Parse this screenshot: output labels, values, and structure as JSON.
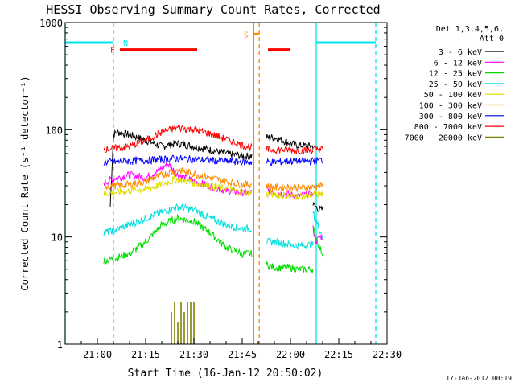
{
  "chart_data": {
    "type": "line",
    "title": "HESSI Observing Summary Count Rates, Corrected",
    "xlabel": "Start Time (16-Jan-12 20:50:02)",
    "ylabel": "Corrected Count Rate (s⁻¹ detector⁻¹)",
    "y_scale": "log",
    "ylim": [
      1,
      1000
    ],
    "xlim_minutes": [
      0,
      100
    ],
    "x_ticks": [
      {
        "minute": 10,
        "label": "21:00"
      },
      {
        "minute": 25,
        "label": "21:15"
      },
      {
        "minute": 40,
        "label": "21:30"
      },
      {
        "minute": 55,
        "label": "21:45"
      },
      {
        "minute": 70,
        "label": "22:00"
      },
      {
        "minute": 85,
        "label": "22:15"
      },
      {
        "minute": 100,
        "label": "22:30"
      }
    ],
    "y_ticks": [
      {
        "value": 1,
        "label": "1"
      },
      {
        "value": 10,
        "label": "10"
      },
      {
        "value": 100,
        "label": "100"
      },
      {
        "value": 1000,
        "label": "1000"
      }
    ],
    "legend_header": [
      "Det 1,3,4,5,6,",
      "Att 0"
    ],
    "legend_placement": "right",
    "series": [
      {
        "name": "3 - 6 keV",
        "color": "#000000",
        "segments": [
          {
            "x": [
              14,
              15,
              16,
              20,
              25,
              30,
              35,
              40,
              45,
              50,
              55,
              58
            ],
            "y": [
              19,
              90,
              95,
              90,
              80,
              70,
              75,
              70,
              65,
              60,
              57,
              57
            ]
          },
          {
            "x": [
              62.5,
              65,
              70,
              72,
              77
            ],
            "y": [
              85,
              85,
              75,
              72,
              70
            ]
          },
          {
            "x": [
              77,
              78,
              79,
              80
            ],
            "y": [
              20,
              19,
              18,
              18
            ]
          }
        ]
      },
      {
        "name": "6 - 12 keV",
        "color": "#ff00ff",
        "segments": [
          {
            "x": [
              12,
              15,
              20,
              25,
              28,
              32,
              35,
              40,
              45,
              50,
              55,
              58
            ],
            "y": [
              32,
              35,
              38,
              36,
              40,
              48,
              38,
              33,
              30,
              27,
              26,
              26
            ]
          },
          {
            "x": [
              62.5,
              65,
              70,
              72,
              77
            ],
            "y": [
              28,
              26,
              25,
              24,
              25
            ]
          },
          {
            "x": [
              77,
              78,
              79,
              80
            ],
            "y": [
              12,
              9,
              10,
              10
            ]
          }
        ]
      },
      {
        "name": "12 - 25 keV",
        "color": "#00dd00",
        "segments": [
          {
            "x": [
              12,
              15,
              20,
              25,
              30,
              35,
              40,
              45,
              50,
              55,
              58
            ],
            "y": [
              6,
              6.3,
              7,
              9,
              13,
              15,
              14,
              11,
              8,
              7,
              7
            ]
          },
          {
            "x": [
              62.5,
              65,
              70,
              72,
              77
            ],
            "y": [
              5.5,
              5.2,
              5.2,
              5,
              5
            ]
          },
          {
            "x": [
              77,
              78,
              79,
              80
            ],
            "y": [
              12,
              10,
              8,
              7
            ]
          }
        ]
      },
      {
        "name": "25 - 50 keV",
        "color": "#00dddd",
        "segments": [
          {
            "x": [
              12,
              15,
              20,
              25,
              30,
              35,
              40,
              45,
              50,
              55,
              58
            ],
            "y": [
              11,
              11.5,
              13,
              15,
              17,
              19,
              18,
              15,
              13,
              12,
              12
            ]
          },
          {
            "x": [
              62.5,
              65,
              70,
              72,
              77
            ],
            "y": [
              9,
              9,
              8.5,
              8.3,
              8.5
            ]
          },
          {
            "x": [
              77,
              78,
              79,
              80
            ],
            "y": [
              17,
              14,
              12,
              10
            ]
          }
        ]
      },
      {
        "name": "50 - 100 keV",
        "color": "#dddd00",
        "segments": [
          {
            "x": [
              12,
              15,
              20,
              25,
              30,
              35,
              40,
              45,
              50,
              55,
              58
            ],
            "y": [
              25,
              26,
              27,
              28,
              31,
              35,
              32,
              30,
              28,
              26,
              26
            ]
          },
          {
            "x": [
              62.5,
              65,
              70,
              72,
              77
            ],
            "y": [
              25,
              25,
              24,
              24,
              24
            ]
          },
          {
            "x": [
              77,
              78,
              79,
              80
            ],
            "y": [
              25,
              25,
              25,
              25
            ]
          }
        ]
      },
      {
        "name": "100 - 300 keV",
        "color": "#ff8800",
        "segments": [
          {
            "x": [
              12,
              15,
              20,
              25,
              30,
              35,
              40,
              45,
              50,
              55,
              58
            ],
            "y": [
              30,
              30,
              31,
              33,
              38,
              42,
              39,
              36,
              33,
              31,
              31
            ]
          },
          {
            "x": [
              62.5,
              65,
              70,
              72,
              77
            ],
            "y": [
              30,
              29,
              29,
              29,
              29
            ]
          },
          {
            "x": [
              77,
              78,
              79,
              80
            ],
            "y": [
              30,
              30,
              30,
              30
            ]
          }
        ]
      },
      {
        "name": "300 - 800 keV",
        "color": "#0000ff",
        "segments": [
          {
            "x": [
              12,
              15,
              20,
              25,
              30,
              35,
              40,
              45,
              50,
              55,
              58
            ],
            "y": [
              50,
              50,
              51,
              52,
              53,
              54,
              53,
              52,
              51,
              50,
              50
            ]
          },
          {
            "x": [
              62.5,
              65,
              70,
              72,
              77
            ],
            "y": [
              50,
              50,
              51,
              51,
              51
            ]
          },
          {
            "x": [
              77,
              78,
              79,
              80
            ],
            "y": [
              52,
              52,
              52,
              52
            ]
          }
        ]
      },
      {
        "name": "800 - 7000 keV",
        "color": "#ff0000",
        "segments": [
          {
            "x": [
              12,
              15,
              20,
              25,
              30,
              35,
              40,
              45,
              50,
              55,
              58
            ],
            "y": [
              66,
              67,
              70,
              80,
              95,
              105,
              100,
              92,
              82,
              72,
              68
            ]
          },
          {
            "x": [
              62.5,
              65,
              70,
              72,
              77
            ],
            "y": [
              65,
              65,
              65,
              64,
              64
            ]
          },
          {
            "x": [
              77,
              78,
              79,
              80
            ],
            "y": [
              66,
              66,
              66,
              66
            ]
          }
        ]
      },
      {
        "name": "7000 - 20000 keV",
        "color": "#808000",
        "spikes": [
          {
            "x": 33,
            "y": 2.0
          },
          {
            "x": 34,
            "y": 2.5
          },
          {
            "x": 35,
            "y": 1.6
          },
          {
            "x": 36,
            "y": 2.5
          },
          {
            "x": 37,
            "y": 2.0
          },
          {
            "x": 38,
            "y": 2.5
          },
          {
            "x": 39,
            "y": 2.5
          },
          {
            "x": 40,
            "y": 2.5
          }
        ]
      }
    ],
    "flag_bars": [
      {
        "label": "",
        "color": "#00e5ee",
        "x": [
          0,
          15
        ],
        "y": 650
      },
      {
        "label": "",
        "color": "#00e5ee",
        "x": [
          78,
          96.5
        ],
        "y": 650
      },
      {
        "label": "F",
        "color": "#ff0000",
        "x": [
          17,
          41
        ],
        "y": 560
      },
      {
        "label": "",
        "color": "#ff0000",
        "x": [
          63,
          70
        ],
        "y": 560
      },
      {
        "label": "S",
        "color": "#ff8800",
        "x": [
          58.5,
          60.3
        ],
        "y": 780
      }
    ],
    "flag_labels": [
      {
        "text": "N",
        "color": "#00e5ee",
        "x": 17,
        "y": 650
      },
      {
        "text": "F",
        "color": "#ff0000",
        "x": 15.5,
        "y": 560
      },
      {
        "text": "S",
        "color": "#ff8800",
        "x": 57,
        "y": 780
      }
    ],
    "vertical_markers": [
      {
        "x": 0,
        "color": "#00e5ee",
        "style": "solid"
      },
      {
        "x": 15,
        "color": "#00e5ee",
        "style": "dashed"
      },
      {
        "x": 58.6,
        "color": "#ff8800",
        "style": "solid"
      },
      {
        "x": 60.3,
        "color": "#ff8800",
        "style": "dashed"
      },
      {
        "x": 78,
        "color": "#00e5ee",
        "style": "solid"
      },
      {
        "x": 96.5,
        "color": "#00e5ee",
        "style": "dashed"
      }
    ],
    "footer_stamp": "17-Jan-2012 00:19"
  }
}
